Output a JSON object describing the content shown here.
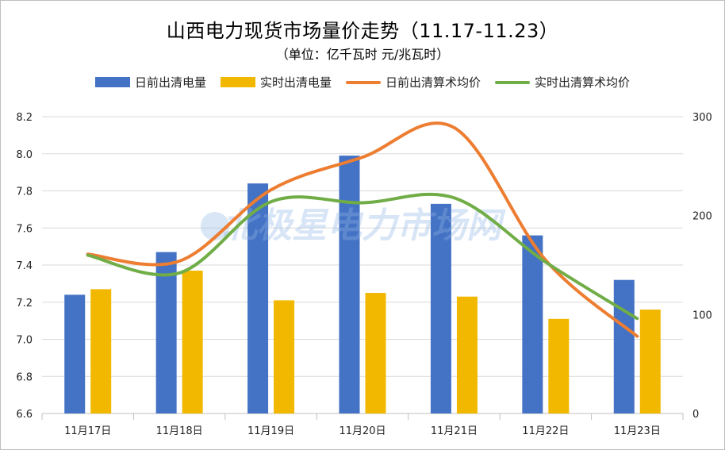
{
  "chart_data": {
    "type": "bar",
    "title": "山西电力现货市场量价走势（11.17-11.23）",
    "subtitle": "（单位：亿千瓦时 元/兆瓦时）",
    "categories": [
      "11月17日",
      "11月18日",
      "11月19日",
      "11月20日",
      "11月21日",
      "11月22日",
      "11月23日"
    ],
    "series": [
      {
        "name": "日前出清电量",
        "type": "bar",
        "axis": "left",
        "color": "#4472C4",
        "values": [
          7.24,
          7.47,
          7.84,
          7.99,
          7.73,
          7.56,
          7.32
        ]
      },
      {
        "name": "实时出清电量",
        "type": "bar",
        "axis": "left",
        "color": "#F2B800",
        "values": [
          7.27,
          7.37,
          7.21,
          7.25,
          7.23,
          7.11,
          7.16
        ]
      },
      {
        "name": "日前出清算术均价",
        "type": "line",
        "axis": "right",
        "color": "#ED7D31",
        "values": [
          161,
          154,
          226,
          259,
          289,
          155,
          78
        ]
      },
      {
        "name": "实时出清算术均价",
        "type": "line",
        "axis": "right",
        "color": "#70AD47",
        "values": [
          160,
          142,
          214,
          213,
          218,
          153,
          96
        ]
      }
    ],
    "y_left": {
      "min": 6.6,
      "max": 8.2,
      "ticks": [
        "6.6",
        "6.8",
        "7.0",
        "7.2",
        "7.4",
        "7.6",
        "7.8",
        "8.0",
        "8.2"
      ]
    },
    "y_right": {
      "min": 0,
      "max": 300,
      "ticks": [
        "0",
        "100",
        "200",
        "300"
      ]
    },
    "grid": true,
    "legend_position": "top",
    "watermark": "北极星电力市场网"
  }
}
